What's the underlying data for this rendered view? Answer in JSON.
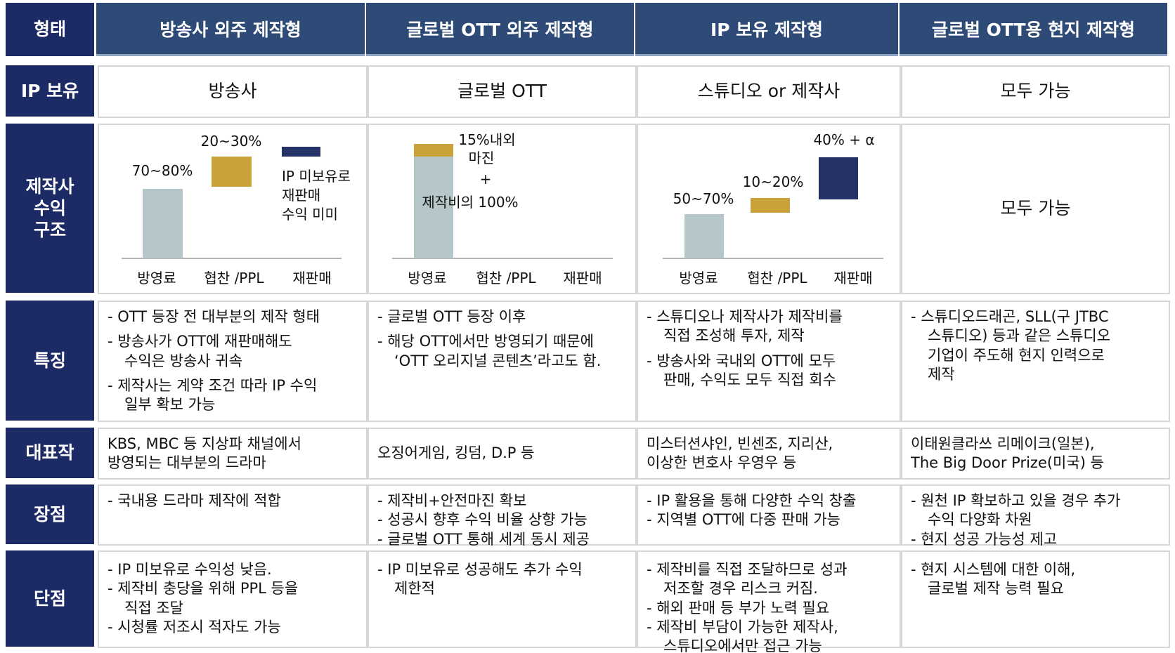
{
  "header": {
    "corner": "형태",
    "columns": [
      "방송사 외주 제작형",
      "글로벌 OTT 외주 제작형",
      "IP 보유 제작형",
      "글로벌 OTT용 현지 제작형"
    ]
  },
  "ip": {
    "label": "IP 보유",
    "cells": [
      "방송사",
      "글로벌 OTT",
      "스튜디오 or 제작사",
      "모두 가능"
    ]
  },
  "revenue": {
    "label": "제작사\n수익\n구조",
    "charts": [
      {
        "axis": [
          "방영료",
          "협찬 /PPL",
          "재판매"
        ],
        "labels": [
          "70~80%",
          "20~30%"
        ],
        "note": [
          "IP 미보유로",
          "재판매",
          "수익 미미"
        ]
      },
      {
        "axis": [
          "방영료",
          "협찬 /PPL",
          "재판매"
        ],
        "labels": [
          "15%내외",
          "마진",
          "+",
          "제작비의 100%"
        ]
      },
      {
        "axis": [
          "방영료",
          "협찬 /PPL",
          "재판매"
        ],
        "labels": [
          "50~70%",
          "10~20%",
          "40% + α"
        ]
      }
    ],
    "last": "모두 가능"
  },
  "features": {
    "label": "특징",
    "cells": [
      [
        "- OTT 등장 전 대부분의 제작 형태",
        "- 방송사가 OTT에 재판매해도\n수익은 방송사 귀속",
        "- 제작사는 계약 조건 따라 IP 수익\n일부 확보 가능"
      ],
      [
        "- 글로벌 OTT 등장 이후",
        "- 해당 OTT에서만 방영되기 때문에\n‘OTT 오리지널 콘텐츠’라고도 함."
      ],
      [
        "- 스튜디오나 제작사가 제작비를\n직접 조성해 투자, 제작",
        "- 방송사와 국내외 OTT에 모두\n판매, 수익도 모두 직접 회수"
      ],
      [
        "- 스튜디오드래곤, SLL(구 JTBC\n스튜디오) 등과 같은 스튜디오\n기업이 주도해 현지 인력으로\n제작"
      ]
    ]
  },
  "works": {
    "label": "대표작",
    "cells": [
      "KBS, MBC 등 지상파 채널에서\n방영되는 대부분의 드라마",
      "오징어게임, 킹덤, D.P 등",
      "미스터션샤인, 빈센조, 지리산,\n이상한 변호사 우영우 등",
      "이태원클라쓰 리메이크(일본),\nThe Big Door Prize(미국) 등"
    ]
  },
  "pros": {
    "label": "장점",
    "cells": [
      [
        "- 국내용 드라마 제작에 적합"
      ],
      [
        "- 제작비+안전마진 확보",
        "- 성공시 향후 수익 비율 상향 가능",
        "- 글로벌 OTT 통해 세계 동시 제공"
      ],
      [
        "- IP 활용을 통해 다양한 수익 창출",
        "- 지역별 OTT에 다중 판매 가능"
      ],
      [
        "- 원천 IP 확보하고 있을 경우 추가\n수익 다양화 차원",
        "- 현지 성공 가능성 제고"
      ]
    ]
  },
  "cons": {
    "label": "단점",
    "cells": [
      [
        "- IP 미보유로 수익성 낮음.",
        "- 제작비 충당을 위해 PPL 등을\n직접 조달",
        "- 시청률 저조시 적자도 가능"
      ],
      [
        "- IP 미보유로 성공해도 추가 수익\n제한적"
      ],
      [
        "- 제작비를 직접 조달하므로 성과\n저조할 경우 리스크 커짐.",
        "- 해외 판매 등 부가 노력 필요",
        "- 제작비 부담이 가능한 제작사,\n스튜디오에서만 접근 가능"
      ],
      [
        "- 현지 시스템에 대한 이해,\n글로벌 제작 능력 필요"
      ]
    ]
  }
}
